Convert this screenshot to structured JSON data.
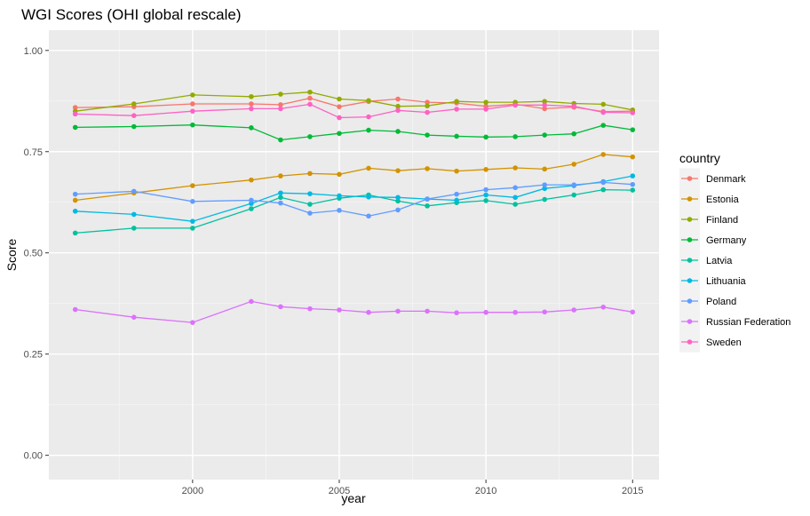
{
  "chart_data": {
    "type": "line",
    "title": "WGI Scores (OHI global rescale)",
    "xlabel": "year",
    "ylabel": "Score",
    "xlim": [
      1995.1,
      2015.9
    ],
    "ylim": [
      -0.06,
      1.05
    ],
    "xticks": [
      2000,
      2005,
      2010,
      2015
    ],
    "yticks": [
      0.0,
      0.25,
      0.5,
      0.75,
      1.0
    ],
    "ytick_labels": [
      "0.00",
      "0.25",
      "0.50",
      "0.75",
      "1.00"
    ],
    "grid": true,
    "legend_title": "country",
    "legend_position": "right",
    "x": [
      1996,
      1998,
      2000,
      2002,
      2003,
      2004,
      2005,
      2006,
      2007,
      2008,
      2009,
      2010,
      2011,
      2012,
      2013,
      2014,
      2015
    ],
    "series": [
      {
        "name": "Denmark",
        "color": "#F8766D",
        "values": [
          0.859,
          0.861,
          0.868,
          0.868,
          0.866,
          0.882,
          0.861,
          0.874,
          0.88,
          0.872,
          0.87,
          0.862,
          0.867,
          0.856,
          0.86,
          0.849,
          0.85
        ]
      },
      {
        "name": "Estonia",
        "color": "#D39200",
        "values": [
          0.63,
          0.648,
          0.666,
          0.68,
          0.69,
          0.696,
          0.694,
          0.709,
          0.703,
          0.708,
          0.702,
          0.706,
          0.71,
          0.707,
          0.719,
          0.743,
          0.737
        ]
      },
      {
        "name": "Finland",
        "color": "#93AA00",
        "values": [
          0.85,
          0.868,
          0.89,
          0.886,
          0.892,
          0.897,
          0.88,
          0.876,
          0.862,
          0.863,
          0.874,
          0.872,
          0.872,
          0.874,
          0.869,
          0.867,
          0.853
        ]
      },
      {
        "name": "Germany",
        "color": "#00BA38",
        "values": [
          0.81,
          0.812,
          0.816,
          0.809,
          0.779,
          0.787,
          0.795,
          0.803,
          0.8,
          0.791,
          0.788,
          0.786,
          0.787,
          0.791,
          0.794,
          0.815,
          0.804
        ]
      },
      {
        "name": "Latvia",
        "color": "#00C19F",
        "values": [
          0.549,
          0.561,
          0.561,
          0.609,
          0.637,
          0.62,
          0.635,
          0.643,
          0.628,
          0.616,
          0.624,
          0.629,
          0.62,
          0.632,
          0.643,
          0.656,
          0.655
        ]
      },
      {
        "name": "Lithuania",
        "color": "#00B9E3",
        "values": [
          0.603,
          0.595,
          0.578,
          0.622,
          0.648,
          0.646,
          0.641,
          0.638,
          0.637,
          0.633,
          0.63,
          0.643,
          0.637,
          0.659,
          0.666,
          0.676,
          0.69
        ]
      },
      {
        "name": "Poland",
        "color": "#619CFF",
        "values": [
          0.645,
          0.652,
          0.627,
          0.63,
          0.623,
          0.598,
          0.605,
          0.591,
          0.606,
          0.633,
          0.645,
          0.656,
          0.661,
          0.668,
          0.668,
          0.674,
          0.669
        ]
      },
      {
        "name": "Russian Federation",
        "color": "#DB72FB",
        "values": [
          0.36,
          0.341,
          0.328,
          0.38,
          0.367,
          0.362,
          0.359,
          0.353,
          0.356,
          0.356,
          0.352,
          0.353,
          0.353,
          0.354,
          0.359,
          0.366,
          0.354
        ]
      },
      {
        "name": "Sweden",
        "color": "#FF61C3",
        "values": [
          0.843,
          0.839,
          0.85,
          0.856,
          0.856,
          0.867,
          0.834,
          0.836,
          0.852,
          0.847,
          0.855,
          0.855,
          0.865,
          0.865,
          0.862,
          0.847,
          0.846
        ]
      }
    ]
  }
}
